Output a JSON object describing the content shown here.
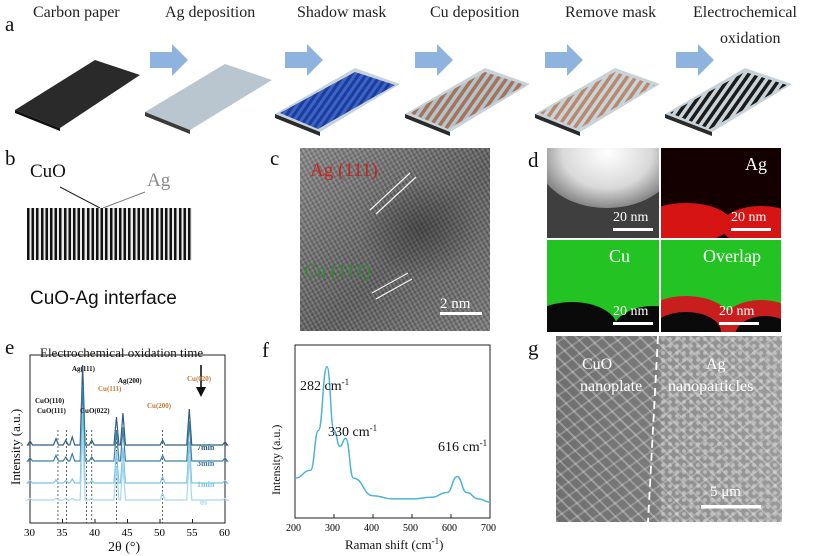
{
  "panel_labels": [
    "a",
    "b",
    "c",
    "d",
    "e",
    "f",
    "g"
  ],
  "a": {
    "steps": [
      "Carbon paper",
      "Ag deposition",
      "Shadow mask",
      "Cu deposition",
      "Remove mask",
      "Electrochemical",
      "oxidation"
    ]
  },
  "b": {
    "cuo": "CuO",
    "ag": "Ag",
    "caption": "CuO-Ag interface"
  },
  "c": {
    "ag_plane": "Ag (111)",
    "cu_plane": "Cu (111)",
    "scale": "2 nm"
  },
  "d": {
    "ag": "Ag",
    "cu": "Cu",
    "overlap": "Overlap",
    "scale": "20 nm"
  },
  "e": {
    "title": "Electrochemical oxidation time",
    "ylabel": "Intensity (a.u.)",
    "xlabel": "2θ (°)",
    "xticks": [
      "30",
      "35",
      "40",
      "45",
      "50",
      "55",
      "60"
    ],
    "peaks": [
      "CuO(110)",
      "CuO(111)",
      "Ag(111)",
      "CuO(022)",
      "Cu(111)",
      "Ag(200)",
      "Cu(200)",
      "Cu(020)"
    ],
    "times": [
      "7min",
      "3min",
      "1min",
      "0s"
    ],
    "colors": [
      "#2f5f7d",
      "#3d7fa8",
      "#7fc4e2",
      "#a6d8ec"
    ]
  },
  "f": {
    "ylabel": "Intensity (a.u.)",
    "xlabel": "Raman shift (cm",
    "xlabel_sup": "-1",
    "xticks": [
      "200",
      "300",
      "400",
      "500",
      "600",
      "700"
    ],
    "peak1": "282 cm",
    "peak2": "330 cm",
    "peak3": "616 cm",
    "sup": "-1"
  },
  "g": {
    "left1": "CuO",
    "left2": "nanoplate",
    "right1": "Ag",
    "right2": "nanoparticles",
    "scale": "5 μm"
  },
  "chart_data": [
    {
      "type": "line",
      "panel": "e",
      "title": "Electrochemical oxidation time",
      "xlabel": "2θ (°)",
      "ylabel": "Intensity (a.u.)",
      "xlim": [
        30,
        60
      ],
      "x": [
        30,
        34,
        35.5,
        36.5,
        38.1,
        39.5,
        43.3,
        44.3,
        50.4,
        54.5,
        60
      ],
      "series": [
        {
          "name": "7min",
          "values": [
            0.05,
            0.08,
            0.06,
            0.1,
            1.0,
            0.06,
            0.35,
            0.4,
            0.06,
            0.45,
            0.04
          ]
        },
        {
          "name": "3min",
          "values": [
            0.04,
            0.07,
            0.05,
            0.09,
            0.95,
            0.05,
            0.38,
            0.42,
            0.07,
            0.5,
            0.04
          ]
        },
        {
          "name": "1min",
          "values": [
            0.03,
            0.04,
            0.03,
            0.05,
            0.9,
            0.03,
            0.4,
            0.44,
            0.08,
            0.52,
            0.03
          ]
        },
        {
          "name": "0s",
          "values": [
            0.02,
            0.02,
            0.02,
            0.02,
            0.85,
            0.02,
            0.42,
            0.46,
            0.09,
            0.55,
            0.02
          ]
        }
      ]
    },
    {
      "type": "line",
      "panel": "f",
      "xlabel": "Raman shift (cm-1)",
      "ylabel": "Intensity (a.u.)",
      "xlim": [
        200,
        700
      ],
      "x": [
        200,
        240,
        260,
        282,
        300,
        315,
        330,
        350,
        400,
        450,
        500,
        550,
        590,
        616,
        640,
        670,
        700
      ],
      "values": [
        0.25,
        0.3,
        0.55,
        0.95,
        0.55,
        0.45,
        0.5,
        0.25,
        0.14,
        0.12,
        0.12,
        0.13,
        0.16,
        0.26,
        0.16,
        0.12,
        0.1
      ]
    }
  ]
}
